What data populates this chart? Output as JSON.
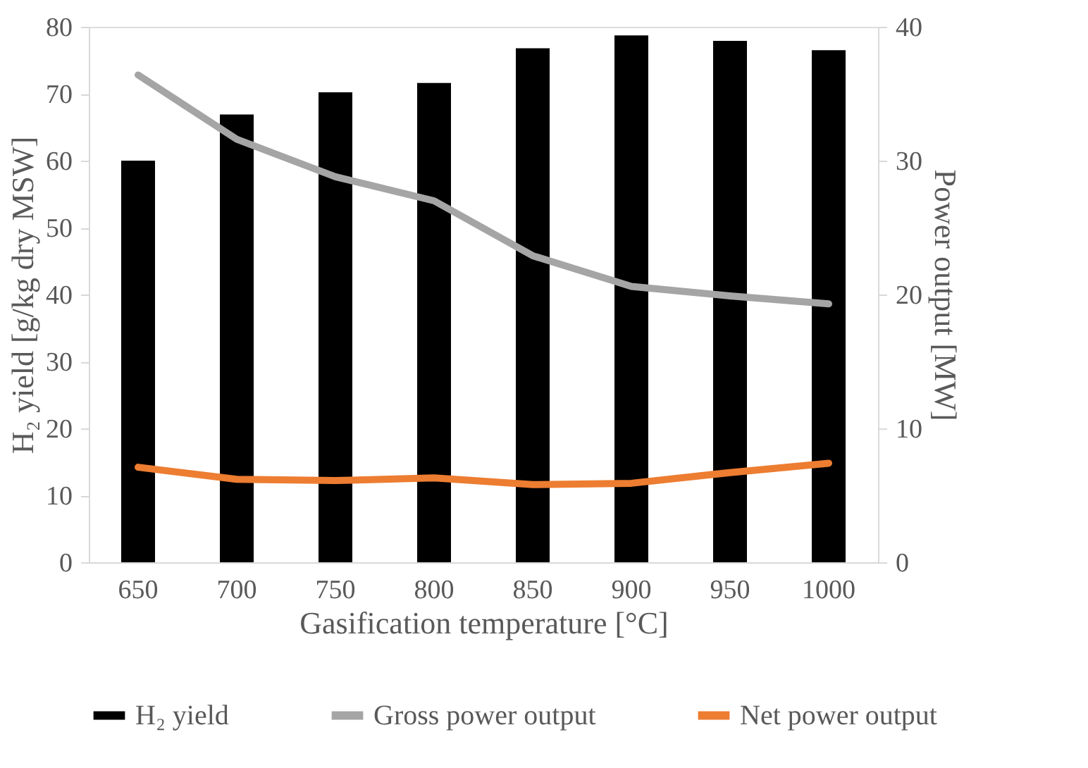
{
  "chart_data": {
    "type": "bar",
    "xlabel": "Gasification temperature [°C]",
    "ylabel": "H₂ yield [g/kg dry MSW]",
    "y2label": "Power output [MW]",
    "categories": [
      "650",
      "700",
      "750",
      "800",
      "850",
      "900",
      "950",
      "1000"
    ],
    "series": [
      {
        "name": "H₂ yield",
        "color": "#000000",
        "values": [
          60.0,
          66.9,
          70.2,
          71.6,
          76.8,
          78.7,
          77.9,
          76.5
        ]
      },
      {
        "name": "Gross power output",
        "type": "line",
        "axis": "y2",
        "color": "#a5a5a5",
        "values": [
          36.4,
          31.6,
          28.8,
          27.0,
          22.9,
          20.6,
          19.9,
          19.3
        ]
      },
      {
        "name": "Net power output",
        "type": "line",
        "axis": "y2",
        "color": "#ed7d31",
        "values": [
          7.1,
          6.2,
          6.1,
          6.3,
          5.8,
          5.9,
          6.7,
          7.4
        ]
      }
    ],
    "ylim": [
      0,
      80
    ],
    "yticks": [
      0,
      10,
      20,
      30,
      40,
      50,
      60,
      70,
      80
    ],
    "y2lim": [
      0,
      40
    ],
    "y2ticks": [
      0,
      10,
      20,
      30,
      40
    ],
    "grid": false,
    "legend": "bottom",
    "line_style": "solid",
    "marker": "none"
  }
}
